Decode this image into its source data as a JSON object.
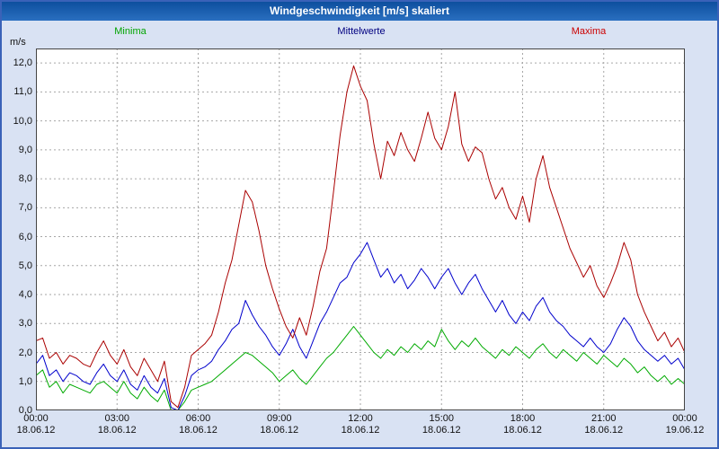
{
  "window": {
    "title": "Windgeschwindigkeit [m/s] skaliert"
  },
  "legend": {
    "minima": "Minima",
    "mittelwerte": "Mittelwerte",
    "maxima": "Maxima"
  },
  "axis": {
    "unit": "m/s",
    "y_tick_labels": [
      "12,0",
      "11,0",
      "10,0",
      "9,0",
      "8,0",
      "7,0",
      "6,0",
      "5,0",
      "4,0",
      "3,0",
      "2,0",
      "1,0",
      "0,0"
    ],
    "x_tick_labels": [
      "00:00",
      "03:00",
      "06:00",
      "09:00",
      "12:00",
      "15:00",
      "18:00",
      "21:00",
      "00:00"
    ],
    "x_date_labels": [
      "18.06.12",
      "18.06.12",
      "18.06.12",
      "18.06.12",
      "18.06.12",
      "18.06.12",
      "18.06.12",
      "18.06.12",
      "19.06.12"
    ]
  },
  "colors": {
    "frame_border": "#3a62b8",
    "titlebar": "#1058aa",
    "background": "#d9e2f3",
    "plot_background": "#ffffff",
    "grid": "#a6a6a6",
    "plot_border": "#444444",
    "legend_minima": "#00a400",
    "legend_mittelwerte": "#000080",
    "legend_maxima": "#cc0000"
  },
  "chart_data": {
    "type": "line",
    "title": "Windgeschwindigkeit [m/s] skaliert",
    "xlabel": "",
    "ylabel": "m/s",
    "ylim": [
      0,
      12.5
    ],
    "y_grid_step": 1.0,
    "x_range_hours": [
      0,
      24
    ],
    "x_step_hours": 0.25,
    "x_tick_hours": [
      0,
      3,
      6,
      9,
      12,
      15,
      18,
      21,
      24
    ],
    "grid": true,
    "legend_position": "top",
    "series": [
      {
        "name": "Minima",
        "color": "#00aa00",
        "values": [
          1.2,
          1.4,
          0.8,
          1.0,
          0.6,
          0.9,
          0.8,
          0.7,
          0.6,
          0.9,
          1.0,
          0.8,
          0.6,
          1.0,
          0.6,
          0.4,
          0.8,
          0.5,
          0.3,
          0.7,
          0.0,
          0.0,
          0.3,
          0.7,
          0.8,
          0.9,
          1.0,
          1.2,
          1.4,
          1.6,
          1.8,
          2.0,
          1.9,
          1.7,
          1.5,
          1.3,
          1.0,
          1.2,
          1.4,
          1.1,
          0.9,
          1.2,
          1.5,
          1.8,
          2.0,
          2.3,
          2.6,
          2.9,
          2.6,
          2.3,
          2.0,
          1.8,
          2.1,
          1.9,
          2.2,
          2.0,
          2.3,
          2.1,
          2.4,
          2.2,
          2.8,
          2.4,
          2.1,
          2.4,
          2.2,
          2.5,
          2.2,
          2.0,
          1.8,
          2.1,
          1.9,
          2.2,
          2.0,
          1.8,
          2.1,
          2.3,
          2.0,
          1.8,
          2.1,
          1.9,
          1.7,
          2.0,
          1.8,
          1.6,
          1.9,
          1.7,
          1.5,
          1.8,
          1.6,
          1.3,
          1.5,
          1.2,
          1.0,
          1.2,
          0.9,
          1.1,
          0.9
        ]
      },
      {
        "name": "Mittelwerte",
        "color": "#0000cc",
        "values": [
          1.6,
          1.9,
          1.2,
          1.4,
          1.0,
          1.3,
          1.2,
          1.0,
          0.9,
          1.3,
          1.6,
          1.2,
          1.0,
          1.4,
          0.9,
          0.7,
          1.2,
          0.8,
          0.6,
          1.1,
          0.1,
          0.0,
          0.5,
          1.2,
          1.4,
          1.5,
          1.7,
          2.1,
          2.4,
          2.8,
          3.0,
          3.8,
          3.3,
          2.9,
          2.6,
          2.2,
          1.9,
          2.3,
          2.8,
          2.2,
          1.8,
          2.4,
          3.0,
          3.4,
          3.9,
          4.4,
          4.6,
          5.1,
          5.4,
          5.8,
          5.2,
          4.6,
          4.9,
          4.4,
          4.7,
          4.2,
          4.5,
          4.9,
          4.6,
          4.2,
          4.6,
          4.9,
          4.4,
          4.0,
          4.4,
          4.7,
          4.2,
          3.8,
          3.4,
          3.8,
          3.3,
          3.0,
          3.4,
          3.1,
          3.6,
          3.9,
          3.4,
          3.1,
          2.9,
          2.6,
          2.4,
          2.2,
          2.5,
          2.2,
          2.0,
          2.3,
          2.8,
          3.2,
          2.9,
          2.4,
          2.1,
          1.9,
          1.7,
          1.9,
          1.6,
          1.8,
          1.4
        ]
      },
      {
        "name": "Maxima",
        "color": "#aa0000",
        "values": [
          2.4,
          2.5,
          1.8,
          2.0,
          1.6,
          1.9,
          1.8,
          1.6,
          1.5,
          2.0,
          2.4,
          1.9,
          1.6,
          2.1,
          1.5,
          1.2,
          1.8,
          1.4,
          1.0,
          1.7,
          0.3,
          0.1,
          0.8,
          1.9,
          2.1,
          2.3,
          2.6,
          3.4,
          4.4,
          5.2,
          6.4,
          7.6,
          7.2,
          6.2,
          5.0,
          4.2,
          3.5,
          2.9,
          2.5,
          3.2,
          2.6,
          3.6,
          4.8,
          5.6,
          7.5,
          9.5,
          11.0,
          11.9,
          11.2,
          10.7,
          9.2,
          8.0,
          9.3,
          8.8,
          9.6,
          9.0,
          8.6,
          9.4,
          10.3,
          9.4,
          9.0,
          9.8,
          11.0,
          9.2,
          8.6,
          9.1,
          8.9,
          8.0,
          7.3,
          7.7,
          7.0,
          6.6,
          7.4,
          6.5,
          8.0,
          8.8,
          7.7,
          7.0,
          6.3,
          5.6,
          5.1,
          4.6,
          5.0,
          4.3,
          3.9,
          4.4,
          5.0,
          5.8,
          5.2,
          4.0,
          3.4,
          2.9,
          2.4,
          2.7,
          2.2,
          2.5,
          2.0
        ]
      }
    ]
  }
}
